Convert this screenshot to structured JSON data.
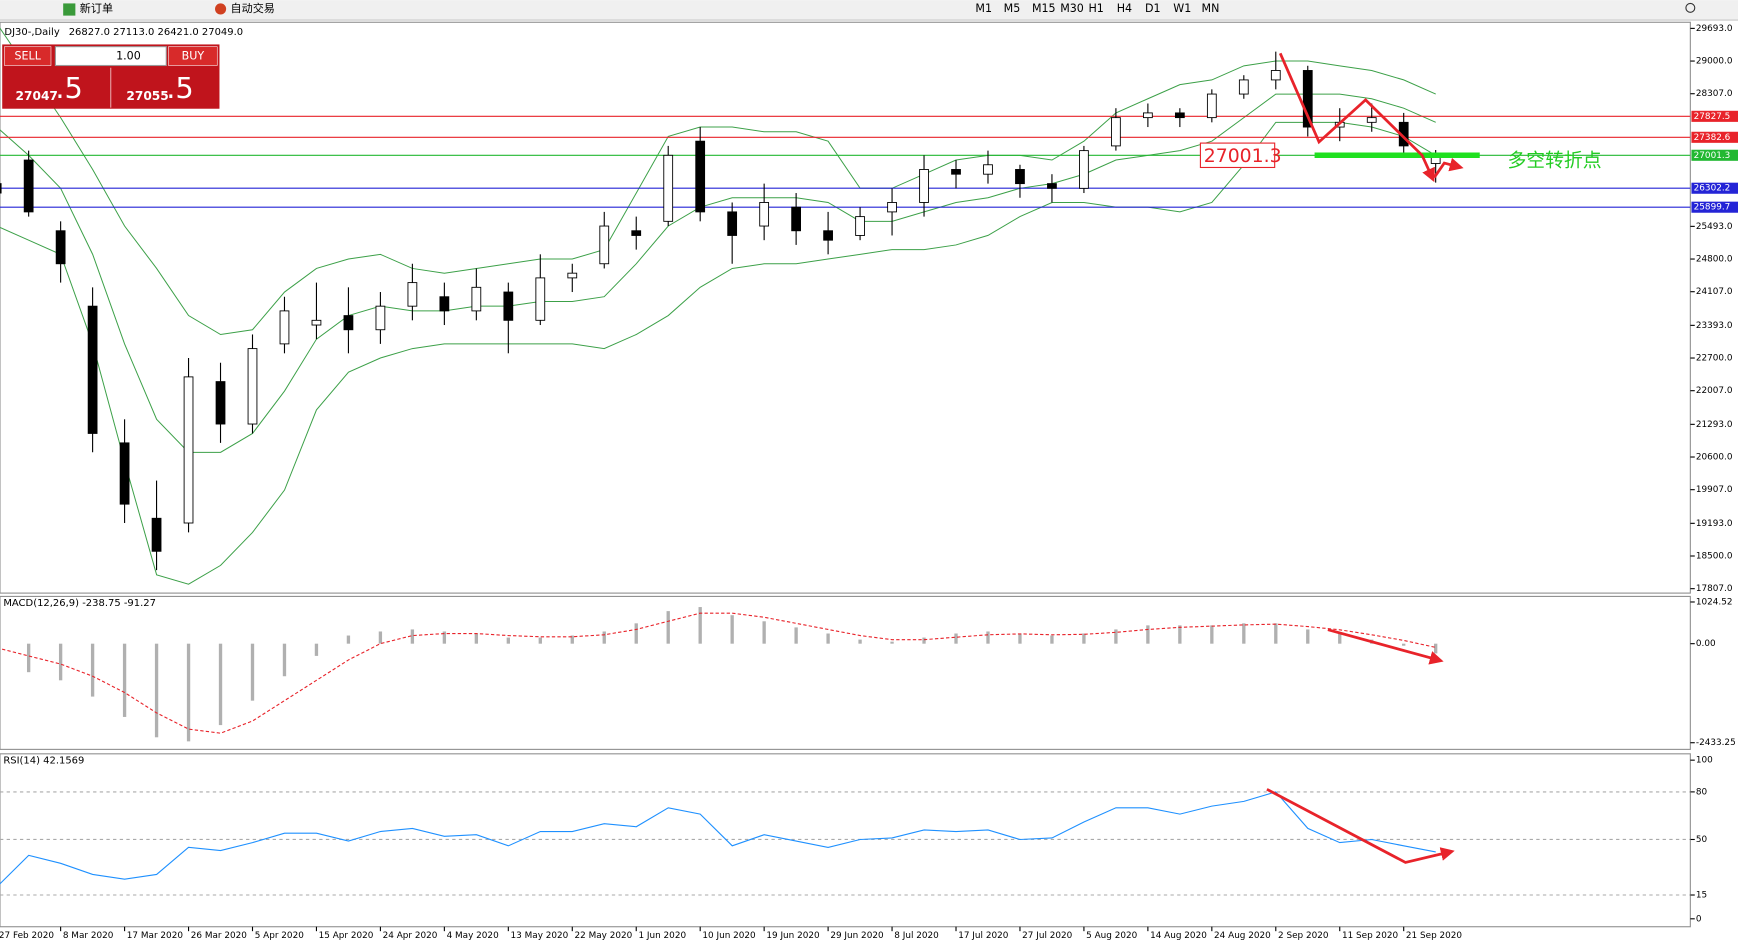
{
  "toolbar": {
    "new_order": "新订单",
    "auto_trading": "自动交易",
    "timeframes": [
      "M1",
      "M5",
      "M15",
      "M30",
      "H1",
      "H4",
      "D1",
      "W1",
      "MN"
    ]
  },
  "trade_panel": {
    "sell": "SELL",
    "buy": "BUY",
    "lot": "1.00",
    "bid_main": "27047",
    "bid_frac": ".5",
    "ask_main": "27055",
    "ask_frac": ".5"
  },
  "chart_data": [
    {
      "type": "candlestick",
      "title": "DJ30-,Daily",
      "subtitle": "26827.0 27113.0 26421.0 27049.0",
      "categories": [
        "27 Feb 2020",
        null,
        "8 Mar 2020",
        null,
        "17 Mar 2020",
        null,
        "26 Mar 2020",
        null,
        "5 Apr 2020",
        null,
        "15 Apr 2020",
        null,
        "24 Apr 2020",
        null,
        "4 May 2020",
        null,
        "13 May 2020",
        null,
        "22 May 2020",
        null,
        "1 Jun 2020",
        null,
        "10 Jun 2020",
        null,
        "19 Jun 2020",
        null,
        "29 Jun 2020",
        null,
        "8 Jul 2020",
        null,
        "17 Jul 2020",
        null,
        "27 Jul 2020",
        null,
        "5 Aug 2020",
        null,
        "14 Aug 2020",
        null,
        "24 Aug 2020",
        null,
        "2 Sep 2020",
        null,
        "11 Sep 2020",
        null,
        "21 Sep 2020",
        null
      ],
      "open": [
        26400,
        26900,
        25400,
        23800,
        20900,
        19300,
        19200,
        22200,
        21300,
        23000,
        23400,
        23600,
        23300,
        23800,
        24000,
        23700,
        24100,
        23500,
        24400,
        24700,
        25400,
        25600,
        27300,
        25800,
        25500,
        25900,
        25400,
        25300,
        25800,
        26000,
        26700,
        26600,
        26700,
        26400,
        26300,
        27200,
        27800,
        27900,
        27800,
        28300,
        28600,
        28800,
        27600,
        27700,
        27700,
        26827
      ],
      "high": [
        26900,
        27100,
        25600,
        24200,
        21400,
        20100,
        22700,
        22600,
        23200,
        24000,
        24300,
        24200,
        24100,
        24700,
        24300,
        24600,
        24300,
        24900,
        24700,
        25800,
        25700,
        27200,
        27600,
        26000,
        26400,
        26200,
        25800,
        25900,
        26300,
        27000,
        26900,
        27100,
        26800,
        26600,
        27200,
        28000,
        28100,
        28000,
        28400,
        28700,
        29200,
        28900,
        28000,
        28100,
        27900,
        27113
      ],
      "low": [
        25900,
        25700,
        24300,
        20700,
        19200,
        18200,
        19000,
        20900,
        21100,
        22800,
        23100,
        22800,
        23000,
        23500,
        23400,
        23500,
        22800,
        23400,
        24100,
        24600,
        25000,
        25500,
        25600,
        24700,
        25200,
        25100,
        24900,
        25200,
        25300,
        25700,
        26300,
        26400,
        26100,
        26000,
        26200,
        27100,
        27600,
        27600,
        27700,
        28200,
        28400,
        27400,
        27300,
        27500,
        27000,
        26421
      ],
      "close": [
        26200,
        25800,
        24700,
        21100,
        19600,
        18600,
        22300,
        21300,
        22900,
        23700,
        23500,
        23300,
        23800,
        24300,
        23700,
        24200,
        23500,
        24400,
        24500,
        25500,
        25300,
        27000,
        25800,
        25300,
        26000,
        25400,
        25200,
        25700,
        26000,
        26700,
        26600,
        26800,
        26400,
        26300,
        27100,
        27800,
        27900,
        27800,
        28300,
        28600,
        28800,
        27600,
        27700,
        27800,
        27200,
        27049
      ],
      "up_color": "#ffffff",
      "down_color": "#000000",
      "series": [
        {
          "color": "#3ca048",
          "values": [
            29800,
            28800,
            27800,
            26700,
            25500,
            24600,
            23600,
            23200,
            23300,
            24100,
            24600,
            24800,
            24900,
            24600,
            24500,
            24600,
            24700,
            24800,
            24800,
            25000,
            26200,
            27400,
            27600,
            27600,
            27500,
            27500,
            27300,
            26300,
            26300,
            26600,
            26900,
            27000,
            27000,
            26900,
            27300,
            27900,
            28200,
            28500,
            28600,
            28900,
            29000,
            29000,
            28900,
            28800,
            28600,
            28300
          ]
        },
        {
          "color": "#3ca048",
          "values": [
            27600,
            27000,
            26300,
            24900,
            23000,
            21400,
            20700,
            20700,
            21100,
            22000,
            23100,
            23600,
            23800,
            23700,
            23700,
            23800,
            23800,
            23900,
            23900,
            24000,
            24700,
            25500,
            25900,
            26100,
            26100,
            26100,
            26000,
            25600,
            25600,
            25800,
            26000,
            26100,
            26300,
            26400,
            26600,
            26900,
            27000,
            27100,
            27300,
            27800,
            28300,
            28300,
            28300,
            28200,
            28000,
            27700
          ]
        },
        {
          "color": "#3ca048",
          "values": [
            25500,
            25200,
            24900,
            23000,
            20500,
            18100,
            17900,
            18300,
            19000,
            19900,
            21600,
            22400,
            22700,
            22900,
            23000,
            23000,
            23000,
            23000,
            23000,
            22900,
            23200,
            23600,
            24200,
            24600,
            24700,
            24700,
            24800,
            24900,
            25000,
            25000,
            25100,
            25300,
            25700,
            26000,
            26000,
            25900,
            25900,
            25800,
            26000,
            26800,
            27700,
            27700,
            27700,
            27600,
            27400,
            27000
          ]
        }
      ],
      "ylim": [
        17713,
        29823
      ],
      "yticks": [
        {
          "value": 29693,
          "label": "29693.0"
        },
        {
          "value": 29000,
          "label": "29000.0"
        },
        {
          "value": 28307,
          "label": "28307.0"
        },
        {
          "value": 25493,
          "label": "25493.0"
        },
        {
          "value": 24800,
          "label": "24800.0"
        },
        {
          "value": 24107,
          "label": "24107.0"
        },
        {
          "value": 23393,
          "label": "23393.0"
        },
        {
          "value": 22700,
          "label": "22700.0"
        },
        {
          "value": 22007,
          "label": "22007.0"
        },
        {
          "value": 21293,
          "label": "21293.0"
        },
        {
          "value": 20600,
          "label": "20600.0"
        },
        {
          "value": 19907,
          "label": "19907.0"
        },
        {
          "value": 19193,
          "label": "19193.0"
        },
        {
          "value": 18500,
          "label": "18500.0"
        },
        {
          "value": 17807,
          "label": "17807.0"
        }
      ],
      "levels": [
        {
          "value": 27827.5,
          "color": "#e8232a"
        },
        {
          "value": 27382.6,
          "color": "#e8232a"
        },
        {
          "value": 27001.3,
          "color": "#22b832"
        },
        {
          "value": 26302.2,
          "color": "#2424d6"
        },
        {
          "value": 25899.7,
          "color": "#2424d6"
        }
      ],
      "annotation": "多空转折点",
      "annotation_color": "#22cc22"
    },
    {
      "type": "histogram-line",
      "title": "MACD(12,26,9) -238.75 -91.27",
      "color": "#b0b0b0",
      "values": [
        -600,
        -700,
        -900,
        -1300,
        -1800,
        -2300,
        -2400,
        -2000,
        -1400,
        -800,
        -300,
        200,
        300,
        350,
        300,
        250,
        150,
        150,
        200,
        300,
        500,
        800,
        900,
        700,
        550,
        400,
        250,
        100,
        50,
        150,
        250,
        300,
        250,
        200,
        250,
        350,
        450,
        450,
        450,
        500,
        500,
        350,
        250,
        100,
        -50,
        -238.75
      ],
      "series": [
        {
          "color": "#e8232a",
          "values": [
            -100,
            -300,
            -500,
            -800,
            -1200,
            -1700,
            -2100,
            -2200,
            -1900,
            -1400,
            -900,
            -400,
            0,
            200,
            250,
            250,
            200,
            170,
            170,
            220,
            350,
            550,
            750,
            750,
            650,
            500,
            350,
            200,
            100,
            100,
            160,
            220,
            240,
            220,
            230,
            280,
            350,
            400,
            430,
            460,
            480,
            420,
            340,
            220,
            80,
            -91.27
          ]
        }
      ],
      "ylim": [
        -2597,
        1161
      ],
      "yticks": [
        {
          "value": 1024.52,
          "label": "1024.52"
        },
        {
          "value": 0,
          "label": "0.00"
        },
        {
          "value": -2433.25,
          "label": "-2433.25"
        }
      ]
    },
    {
      "type": "line",
      "title": "RSI(14) 42.1569",
      "series": [
        {
          "color": "#1e90ff",
          "values": [
            20,
            40,
            35,
            28,
            25,
            28,
            45,
            43,
            48,
            54,
            54,
            49,
            55,
            57,
            52,
            53,
            46,
            55,
            55,
            60,
            58,
            70,
            66,
            46,
            53,
            49,
            45,
            50,
            51,
            56,
            55,
            56,
            50,
            51,
            61,
            70,
            70,
            66,
            71,
            74,
            80,
            57,
            48,
            50,
            46,
            42.1569
          ]
        }
      ],
      "ylim": [
        -5,
        104
      ],
      "yticks": [
        100,
        80,
        50,
        15,
        0
      ],
      "levels": [
        80,
        50,
        15
      ]
    }
  ]
}
